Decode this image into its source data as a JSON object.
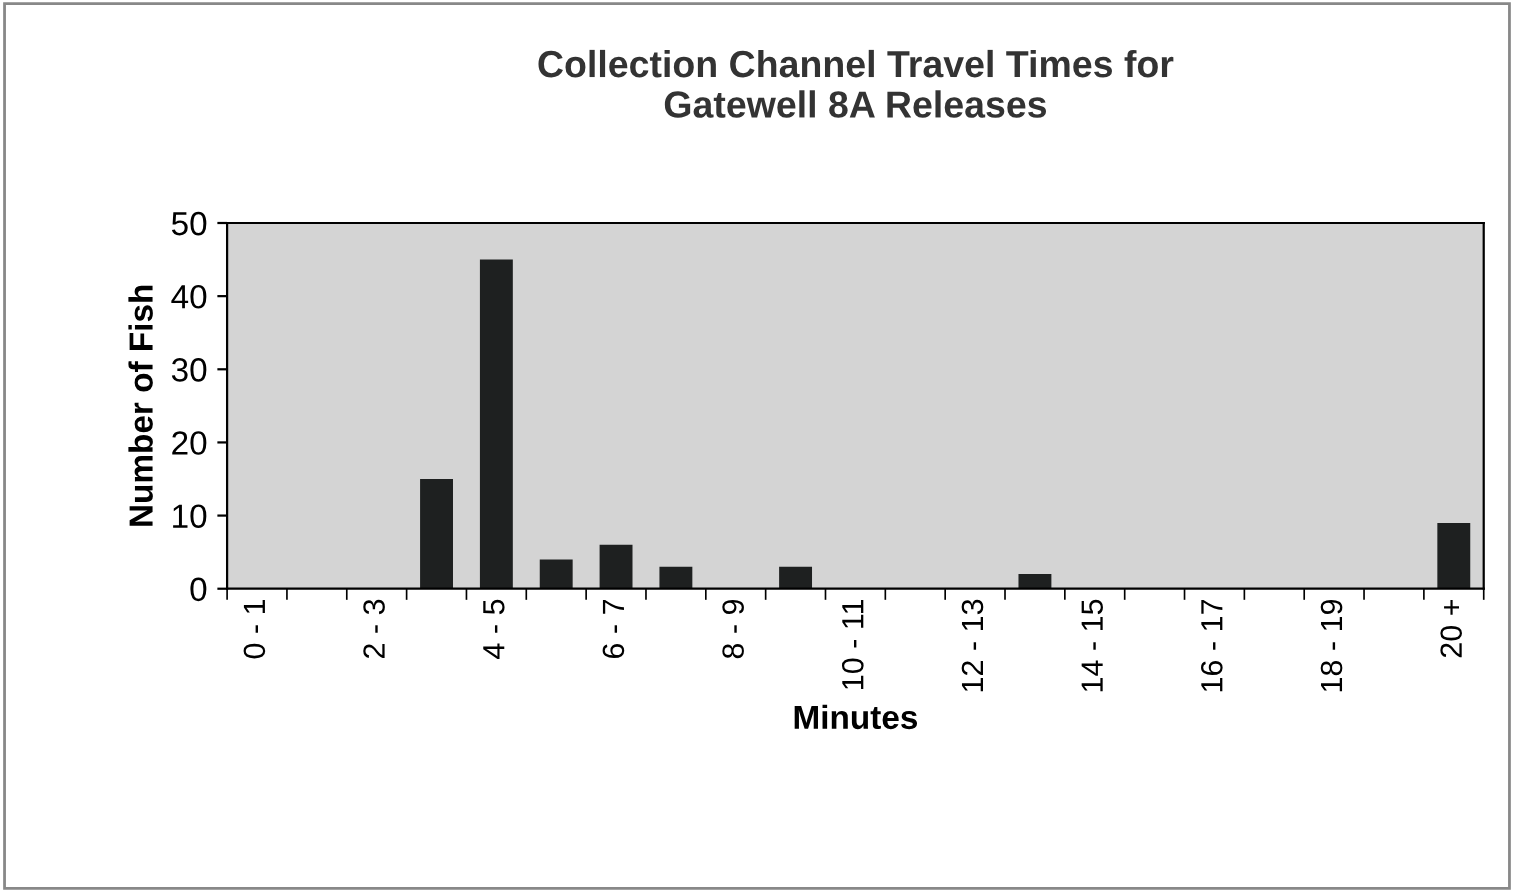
{
  "chart_data": {
    "type": "bar",
    "title": "Collection Channel Travel Times for\nGatewell 8A Releases",
    "xlabel": "Minutes",
    "ylabel": "Number of Fish",
    "categories": [
      "0 - 1",
      null,
      "2 - 3",
      null,
      "4 - 5",
      null,
      "6 - 7",
      null,
      "8 - 9",
      null,
      "10 - 11",
      null,
      "12 - 13",
      null,
      "14 - 15",
      null,
      "16 - 17",
      null,
      "18 - 19",
      null,
      "20 +"
    ],
    "values": [
      0,
      0,
      0,
      15,
      45,
      4,
      6,
      3,
      0,
      3,
      0,
      0,
      0,
      2,
      0,
      0,
      0,
      0,
      0,
      0,
      9
    ],
    "color": "#1e2020",
    "ylim": [
      0,
      50
    ],
    "yticks": [
      0,
      10,
      20,
      30,
      40,
      50
    ],
    "grid": false,
    "legend": false
  }
}
